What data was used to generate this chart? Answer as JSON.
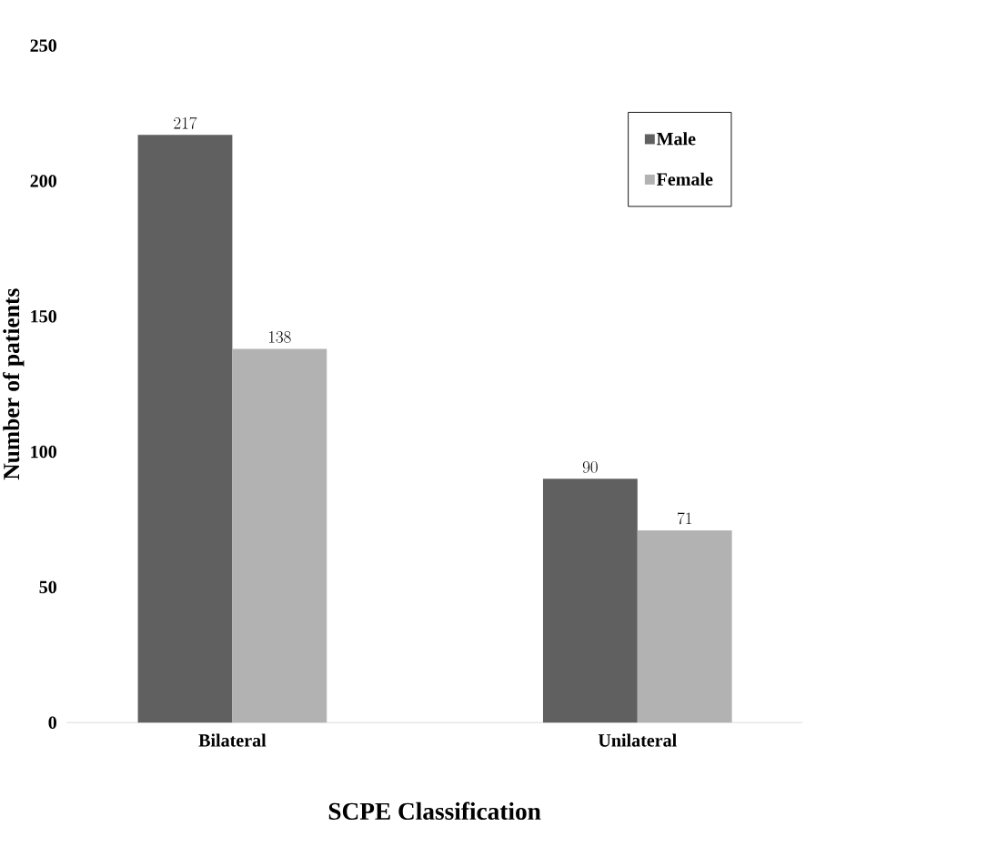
{
  "chart_data": {
    "type": "bar",
    "xlabel": "SCPE Classification",
    "ylabel": "Number of patients",
    "categories": [
      "Bilateral",
      "Unilateral"
    ],
    "series": [
      {
        "name": "Male",
        "color": "#606060",
        "values": [
          217,
          90
        ]
      },
      {
        "name": "Female",
        "color": "#b2b2b2",
        "values": [
          138,
          71
        ]
      }
    ],
    "ylim": [
      0,
      250
    ],
    "yticks": [
      0,
      50,
      100,
      150,
      200,
      250
    ],
    "data_labels": true,
    "legend": "top right"
  }
}
